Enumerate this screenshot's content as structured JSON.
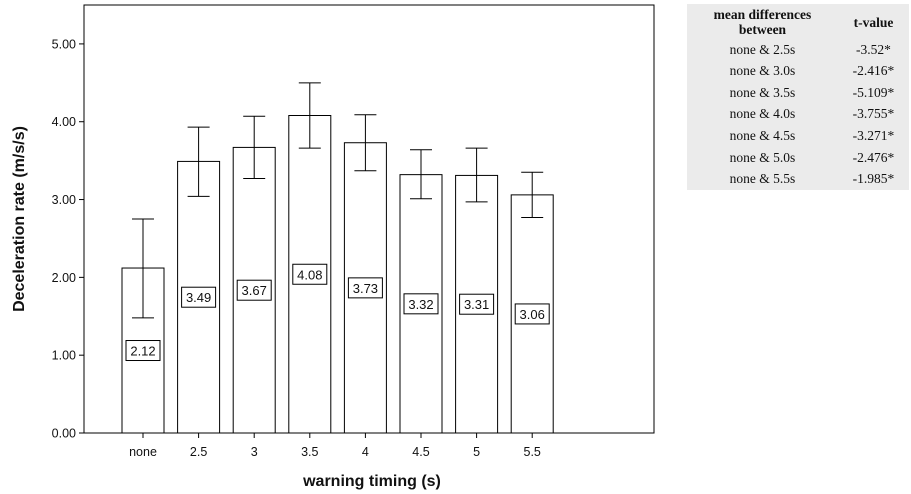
{
  "chart_data": {
    "type": "bar",
    "categories": [
      "none",
      "2.5",
      "3",
      "3.5",
      "4",
      "4.5",
      "5",
      "5.5"
    ],
    "values": [
      2.12,
      3.49,
      3.67,
      4.08,
      3.73,
      3.32,
      3.31,
      3.06
    ],
    "value_labels": [
      "2.12",
      "3.49",
      "3.67",
      "4.08",
      "3.73",
      "3.32",
      "3.31",
      "3.06"
    ],
    "error_bars": [
      {
        "low": 1.48,
        "high": 2.75
      },
      {
        "low": 3.04,
        "high": 3.93
      },
      {
        "low": 3.27,
        "high": 4.07
      },
      {
        "low": 3.66,
        "high": 4.5
      },
      {
        "low": 3.37,
        "high": 4.09
      },
      {
        "low": 3.01,
        "high": 3.64
      },
      {
        "low": 2.97,
        "high": 3.66
      },
      {
        "low": 2.77,
        "high": 3.35
      }
    ],
    "xlabel": "warning timing (s)",
    "ylabel": "Deceleration rate (m/s/s)",
    "ylim": [
      0,
      5.5
    ],
    "yticks": [
      0,
      1,
      2,
      3,
      4,
      5
    ],
    "ytick_labels": [
      "0.00",
      "1.00",
      "2.00",
      "3.00",
      "4.00",
      "5.00"
    ],
    "grid": false,
    "colors": {
      "bar_fill": "#ffffff",
      "bar_stroke": "#000000",
      "axis": "#000000"
    }
  },
  "table": {
    "header": {
      "col1": "mean differences between",
      "col2": "t-value"
    },
    "rows": [
      {
        "pair": "none & 2.5s",
        "t": "-3.52*"
      },
      {
        "pair": "none & 3.0s",
        "t": "-2.416*"
      },
      {
        "pair": "none & 3.5s",
        "t": "-5.109*"
      },
      {
        "pair": "none & 4.0s",
        "t": "-3.755*"
      },
      {
        "pair": "none & 4.5s",
        "t": "-3.271*"
      },
      {
        "pair": "none & 5.0s",
        "t": "-2.476*"
      },
      {
        "pair": "none & 5.5s",
        "t": "-1.985*"
      }
    ],
    "background": "#ebebeb"
  }
}
